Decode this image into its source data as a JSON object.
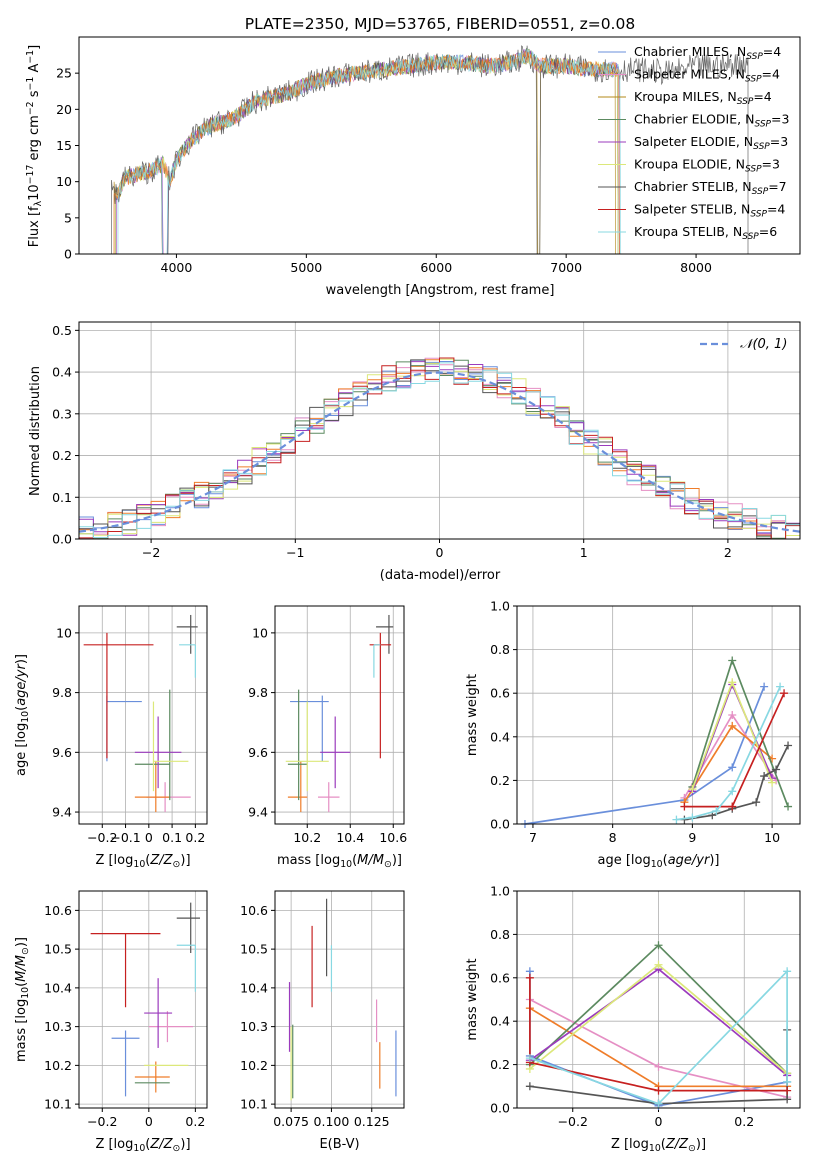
{
  "figure_title": "PLATE=2350, MJD=53765, FIBERID=0551, z=0.08",
  "colors": {
    "Chabrier MILES": "#6a8fdb",
    "Salpeter MILES": "#e58fc4",
    "Kroupa MILES": "#b38a1a",
    "Chabrier ELODIE": "#5c8a60",
    "Salpeter ELODIE": "#9b3bbd",
    "Kroupa ELODIE": "#dce87a",
    "Chabrier STELIB": "#555555",
    "Salpeter STELIB": "#c62020",
    "Kroupa STELIB": "#88d8e2",
    "extra_orange": "#ef7d2a",
    "gaussian": "#6a8fdb"
  },
  "chart_data": [
    {
      "id": "spectrum",
      "type": "line",
      "title": "PLATE=2350, MJD=53765, FIBERID=0551, z=0.08",
      "xlabel": "wavelength [Angstrom, rest frame]",
      "ylabel": "Flux [f_λ 10^-17 erg cm^-2 s^-1 A^-1]",
      "xlim": [
        3250,
        8800
      ],
      "ylim": [
        0,
        30
      ],
      "xticks": [
        4000,
        5000,
        6000,
        7000,
        8000
      ],
      "yticks": [
        0,
        5,
        10,
        15,
        20,
        25
      ],
      "legend_position": "right",
      "legend": [
        "Chabrier MILES, N_SSP=4",
        "Salpeter MILES, N_SSP=4",
        "Kroupa MILES, N_SSP=4",
        "Chabrier ELODIE, N_SSP=3",
        "Salpeter ELODIE, N_SSP=3",
        "Kroupa ELODIE, N_SSP=3",
        "Chabrier STELIB, N_SSP=7",
        "Salpeter STELIB, N_SSP=4",
        "Kroupa STELIB, N_SSP=6"
      ],
      "legend_names": [
        "Chabrier MILES",
        "Salpeter MILES",
        "Kroupa MILES",
        "Chabrier ELODIE",
        "Salpeter ELODIE",
        "Kroupa ELODIE",
        "Chabrier STELIB",
        "Salpeter STELIB",
        "Kroupa STELIB"
      ],
      "legend_counts": [
        "4",
        "4",
        "4",
        "3",
        "3",
        "3",
        "7",
        "4",
        "6"
      ],
      "series": [
        {
          "name": "Data",
          "color": "#555555",
          "x": [
            3500,
            3550,
            3600,
            3700,
            3800,
            3900,
            3950,
            4000,
            4100,
            4200,
            4300,
            4400,
            4500,
            4600,
            4700,
            4800,
            4900,
            5000,
            5200,
            5400,
            5600,
            5800,
            6000,
            6200,
            6400,
            6600,
            6700,
            6800,
            7000,
            7200,
            7400,
            7600,
            7800,
            8000,
            8200,
            8400
          ],
          "y": [
            9.5,
            8.0,
            10.5,
            11.0,
            11.5,
            12.5,
            10.0,
            13.0,
            15.5,
            17.0,
            18.0,
            18.5,
            19.5,
            21.0,
            21.5,
            22.0,
            22.5,
            23.5,
            24.5,
            25.0,
            25.5,
            26.0,
            26.5,
            26.5,
            26.0,
            26.5,
            27.5,
            26.0,
            26.0,
            25.5,
            25.5,
            25.5,
            25.0,
            26.0,
            26.0,
            26.5
          ]
        },
        {
          "name": "Model",
          "color": "#88d8e2",
          "x": [
            3550,
            3700,
            3900,
            4100,
            4300,
            4500,
            4700,
            4900,
            5100,
            5300,
            5500,
            5800,
            6100,
            6400,
            6700,
            7000,
            7300,
            7400
          ],
          "y": [
            9.0,
            10.5,
            12.0,
            15.0,
            17.5,
            19.5,
            21.5,
            22.5,
            23.5,
            24.5,
            25.0,
            25.5,
            26.0,
            26.0,
            26.0,
            25.5,
            25.5,
            25.0
          ]
        }
      ]
    },
    {
      "id": "residuals",
      "type": "histogram",
      "xlabel": "(data-model)/error",
      "ylabel": "Normed distribution",
      "xlim": [
        -2.5,
        2.5
      ],
      "ylim": [
        0,
        0.52
      ],
      "xticks": [
        -2,
        -1,
        0,
        1,
        2
      ],
      "yticks": [
        0.0,
        0.1,
        0.2,
        0.3,
        0.4,
        0.5
      ],
      "grid": true,
      "legend_position": "top-right",
      "legend": [
        "N(0,1)"
      ],
      "bin_width": 0.1,
      "bin_start": -2.5,
      "gaussian": {
        "mu": 0,
        "sigma": 1
      }
    },
    {
      "id": "age_vs_Z",
      "type": "errorbar",
      "xlabel": "Z [log10(Z/Z_sun)]",
      "ylabel": "age [log10(age/yr)]",
      "xlim": [
        -0.3,
        0.25
      ],
      "ylim": [
        9.36,
        10.09
      ],
      "xticks": [
        -0.2,
        -0.1,
        0.0,
        0.1,
        0.2
      ],
      "yticks": [
        9.4,
        9.6,
        9.8,
        10.0
      ],
      "grid": true,
      "points": [
        {
          "s": "Chabrier MILES",
          "x": -0.18,
          "xerr": [
            0.0,
            0.15
          ],
          "y": 9.77,
          "yerr": [
            0.2,
            0.02
          ]
        },
        {
          "s": "Salpeter MILES",
          "x": 0.07,
          "xerr": [
            0.08,
            0.11
          ],
          "y": 9.45,
          "yerr": [
            0.05,
            0.05
          ]
        },
        {
          "s": "extra_orange",
          "x": 0.03,
          "xerr": [
            0.09,
            0.06
          ],
          "y": 9.45,
          "yerr": [
            0.05,
            0.12
          ]
        },
        {
          "s": "Chabrier ELODIE",
          "x": 0.09,
          "xerr": [
            0.15,
            0.0
          ],
          "y": 9.56,
          "yerr": [
            0.12,
            0.25
          ]
        },
        {
          "s": "Salpeter ELODIE",
          "x": 0.04,
          "xerr": [
            0.1,
            0.1
          ],
          "y": 9.6,
          "yerr": [
            0.12,
            0.12
          ]
        },
        {
          "s": "Kroupa ELODIE",
          "x": 0.02,
          "xerr": [
            0.0,
            0.15
          ],
          "y": 9.57,
          "yerr": [
            0.1,
            0.2
          ]
        },
        {
          "s": "Chabrier STELIB",
          "x": 0.18,
          "xerr": [
            0.06,
            0.03
          ],
          "y": 10.02,
          "yerr": [
            0.09,
            0.04
          ]
        },
        {
          "s": "Salpeter STELIB",
          "x": -0.18,
          "xerr": [
            0.1,
            0.2
          ],
          "y": 9.96,
          "yerr": [
            0.38,
            0.04
          ]
        },
        {
          "s": "Kroupa STELIB",
          "x": 0.2,
          "xerr": [
            0.07,
            0.0
          ],
          "y": 9.96,
          "yerr": [
            0.11,
            0.0
          ]
        }
      ]
    },
    {
      "id": "age_vs_mass",
      "type": "errorbar",
      "xlabel": "mass [log10(M/M_sun)]",
      "ylabel": "",
      "xlim": [
        10.05,
        10.65
      ],
      "ylim": [
        9.36,
        10.09
      ],
      "xticks": [
        10.2,
        10.4,
        10.6
      ],
      "yticks": [
        9.4,
        9.6,
        9.8,
        10.0
      ],
      "grid": true,
      "points": [
        {
          "s": "Chabrier MILES",
          "x": 10.27,
          "xerr": [
            0.15,
            0.03
          ],
          "y": 9.77,
          "yerr": [
            0.2,
            0.02
          ]
        },
        {
          "s": "Salpeter MILES",
          "x": 10.3,
          "xerr": [
            0.05,
            0.05
          ],
          "y": 9.45,
          "yerr": [
            0.05,
            0.05
          ]
        },
        {
          "s": "extra_orange",
          "x": 10.17,
          "xerr": [
            0.06,
            0.03
          ],
          "y": 9.45,
          "yerr": [
            0.05,
            0.12
          ]
        },
        {
          "s": "Chabrier ELODIE",
          "x": 10.16,
          "xerr": [
            0.05,
            0.04
          ],
          "y": 9.56,
          "yerr": [
            0.12,
            0.25
          ]
        },
        {
          "s": "Salpeter ELODIE",
          "x": 10.33,
          "xerr": [
            0.07,
            0.07
          ],
          "y": 9.6,
          "yerr": [
            0.12,
            0.12
          ]
        },
        {
          "s": "Kroupa ELODIE",
          "x": 10.2,
          "xerr": [
            0.1,
            0.1
          ],
          "y": 9.57,
          "yerr": [
            0.1,
            0.2
          ]
        },
        {
          "s": "Chabrier STELIB",
          "x": 10.58,
          "xerr": [
            0.06,
            0.02
          ],
          "y": 10.02,
          "yerr": [
            0.09,
            0.04
          ]
        },
        {
          "s": "Salpeter STELIB",
          "x": 10.54,
          "xerr": [
            0.05,
            0.05
          ],
          "y": 9.96,
          "yerr": [
            0.38,
            0.04
          ]
        },
        {
          "s": "Kroupa STELIB",
          "x": 10.51,
          "xerr": [
            0.0,
            0.03
          ],
          "y": 9.96,
          "yerr": [
            0.11,
            0.0
          ]
        }
      ]
    },
    {
      "id": "mw_vs_age",
      "type": "line",
      "xlabel": "age [log10(age/yr)]",
      "ylabel": "mass weight",
      "xlim": [
        6.8,
        10.35
      ],
      "ylim": [
        0,
        1
      ],
      "xticks": [
        7,
        8,
        9,
        10
      ],
      "yticks": [
        0.0,
        0.2,
        0.4,
        0.6,
        0.8,
        1.0
      ],
      "grid": true,
      "series": [
        {
          "s": "Chabrier MILES",
          "x": [
            6.9,
            8.9,
            9.5,
            9.9
          ],
          "y": [
            0.0,
            0.11,
            0.26,
            0.63
          ]
        },
        {
          "s": "Salpeter MILES",
          "x": [
            8.9,
            9.5,
            10.05
          ],
          "y": [
            0.12,
            0.5,
            0.2
          ]
        },
        {
          "s": "extra_orange",
          "x": [
            8.9,
            9.5,
            10.0
          ],
          "y": [
            0.1,
            0.45,
            0.3
          ]
        },
        {
          "s": "Chabrier ELODIE",
          "x": [
            9.0,
            9.5,
            10.2
          ],
          "y": [
            0.17,
            0.75,
            0.08
          ]
        },
        {
          "s": "Salpeter ELODIE",
          "x": [
            9.0,
            9.5,
            10.0
          ],
          "y": [
            0.15,
            0.64,
            0.21
          ]
        },
        {
          "s": "Kroupa ELODIE",
          "x": [
            9.0,
            9.5,
            10.0
          ],
          "y": [
            0.16,
            0.65,
            0.19
          ]
        },
        {
          "s": "Chabrier STELIB",
          "x": [
            8.9,
            9.25,
            9.5,
            9.8,
            9.9,
            10.05,
            10.2
          ],
          "y": [
            0.02,
            0.04,
            0.07,
            0.1,
            0.22,
            0.25,
            0.36
          ]
        },
        {
          "s": "Salpeter STELIB",
          "x": [
            8.9,
            9.5,
            10.15
          ],
          "y": [
            0.08,
            0.08,
            0.6
          ]
        },
        {
          "s": "Kroupa STELIB",
          "x": [
            8.8,
            9.0,
            9.3,
            9.5,
            10.1
          ],
          "y": [
            0.02,
            0.03,
            0.06,
            0.15,
            0.63
          ]
        }
      ]
    },
    {
      "id": "mass_vs_Z",
      "type": "errorbar",
      "xlabel": "Z [log10(Z/Z_sun)]",
      "ylabel": "mass [log10(M/M_sun)]",
      "xlim": [
        -0.3,
        0.25
      ],
      "ylim": [
        10.09,
        10.65
      ],
      "xticks": [
        -0.2,
        0.0,
        0.2
      ],
      "yticks": [
        10.1,
        10.2,
        10.3,
        10.4,
        10.5,
        10.6
      ],
      "grid": true,
      "points": [
        {
          "s": "Chabrier MILES",
          "x": -0.1,
          "xerr": [
            0.06,
            0.06
          ],
          "y": 10.27,
          "yerr": [
            0.15,
            0.02
          ]
        },
        {
          "s": "Salpeter MILES",
          "x": 0.08,
          "xerr": [
            0.08,
            0.11
          ],
          "y": 10.3,
          "yerr": [
            0.04,
            0.04
          ]
        },
        {
          "s": "extra_orange",
          "x": 0.03,
          "xerr": [
            0.09,
            0.06
          ],
          "y": 10.17,
          "yerr": [
            0.04,
            0.04
          ]
        },
        {
          "s": "Chabrier ELODIE",
          "x": 0.09,
          "xerr": [
            0.15,
            0.0
          ],
          "y": 10.155,
          "yerr": [
            0.0,
            0.0
          ]
        },
        {
          "s": "Salpeter ELODIE",
          "x": 0.04,
          "xerr": [
            0.06,
            0.06
          ],
          "y": 10.335,
          "yerr": [
            0.09,
            0.09
          ]
        },
        {
          "s": "Kroupa ELODIE",
          "x": 0.1,
          "xerr": [
            0.12,
            0.07
          ],
          "y": 10.2,
          "yerr": [
            0.0,
            0.0
          ]
        },
        {
          "s": "Chabrier STELIB",
          "x": 0.18,
          "xerr": [
            0.06,
            0.04
          ],
          "y": 10.58,
          "yerr": [
            0.09,
            0.04
          ]
        },
        {
          "s": "Salpeter STELIB",
          "x": -0.1,
          "xerr": [
            0.15,
            0.15
          ],
          "y": 10.54,
          "yerr": [
            0.19,
            0.0
          ]
        },
        {
          "s": "Kroupa STELIB",
          "x": 0.2,
          "xerr": [
            0.08,
            0.0
          ],
          "y": 10.51,
          "yerr": [
            0.12,
            0.0
          ]
        }
      ]
    },
    {
      "id": "mass_vs_ebv",
      "type": "errorbar",
      "xlabel": "E(B-V)",
      "ylabel": "",
      "xlim": [
        0.065,
        0.145
      ],
      "ylim": [
        10.09,
        10.65
      ],
      "xticks": [
        0.075,
        0.1,
        0.125
      ],
      "xtick_labels": [
        "0.075",
        "0.100",
        "0.125"
      ],
      "yticks": [
        10.1,
        10.2,
        10.3,
        10.4,
        10.5,
        10.6
      ],
      "grid": true,
      "points": [
        {
          "s": "Chabrier MILES",
          "x": 0.14,
          "y": 10.2,
          "yerr": [
            0.08,
            0.09
          ]
        },
        {
          "s": "Salpeter MILES",
          "x": 0.128,
          "y": 10.3,
          "yerr": [
            0.04,
            0.07
          ]
        },
        {
          "s": "extra_orange",
          "x": 0.13,
          "y": 10.2,
          "yerr": [
            0.06,
            0.06
          ]
        },
        {
          "s": "Chabrier ELODIE",
          "x": 0.076,
          "y": 10.155,
          "yerr": [
            0.04,
            0.15
          ]
        },
        {
          "s": "Salpeter ELODIE",
          "x": 0.074,
          "y": 10.335,
          "yerr": [
            0.1,
            0.08
          ]
        },
        {
          "s": "Kroupa ELODIE",
          "x": 0.075,
          "y": 10.2,
          "yerr": [
            0.09,
            0.1
          ]
        },
        {
          "s": "Chabrier STELIB",
          "x": 0.097,
          "y": 10.53,
          "yerr": [
            0.1,
            0.1
          ]
        },
        {
          "s": "Salpeter STELIB",
          "x": 0.088,
          "y": 10.45,
          "yerr": [
            0.1,
            0.11
          ]
        },
        {
          "s": "Kroupa STELIB",
          "x": 0.1,
          "y": 10.45,
          "yerr": [
            0.06,
            0.06
          ]
        }
      ]
    },
    {
      "id": "mw_vs_Z",
      "type": "line",
      "xlabel": "Z [log10(Z/Z_sun)]",
      "ylabel": "mass weight",
      "xlim": [
        -0.33,
        0.33
      ],
      "ylim": [
        0,
        1
      ],
      "xticks": [
        -0.2,
        0.0,
        0.2
      ],
      "yticks": [
        0.0,
        0.2,
        0.4,
        0.6,
        0.8,
        1.0
      ],
      "grid": true,
      "series": [
        {
          "s": "Chabrier MILES",
          "x": [
            -0.3,
            -0.3,
            0.0,
            0.3
          ],
          "y": [
            0.63,
            0.24,
            0.01,
            0.12
          ]
        },
        {
          "s": "Salpeter MILES",
          "x": [
            -0.3,
            0.0,
            0.3
          ],
          "y": [
            0.5,
            0.19,
            0.05
          ]
        },
        {
          "s": "extra_orange",
          "x": [
            -0.3,
            0.0,
            0.3
          ],
          "y": [
            0.46,
            0.1,
            0.1
          ]
        },
        {
          "s": "Chabrier ELODIE",
          "x": [
            -0.3,
            0.0,
            0.3
          ],
          "y": [
            0.2,
            0.75,
            0.16
          ]
        },
        {
          "s": "Salpeter ELODIE",
          "x": [
            -0.3,
            0.0,
            0.3
          ],
          "y": [
            0.22,
            0.64,
            0.15
          ]
        },
        {
          "s": "Kroupa ELODIE",
          "x": [
            -0.3,
            0.0,
            0.3
          ],
          "y": [
            0.18,
            0.66,
            0.16
          ]
        },
        {
          "s": "Chabrier STELIB",
          "x": [
            -0.3,
            0.0,
            0.3,
            0.3
          ],
          "y": [
            0.1,
            0.02,
            0.04,
            0.36
          ]
        },
        {
          "s": "Salpeter STELIB",
          "x": [
            -0.3,
            -0.3,
            0.0,
            0.3
          ],
          "y": [
            0.6,
            0.21,
            0.08,
            0.08
          ]
        },
        {
          "s": "Kroupa STELIB",
          "x": [
            -0.3,
            0.0,
            0.3,
            0.3
          ],
          "y": [
            0.23,
            0.02,
            0.63,
            0.12
          ]
        }
      ]
    }
  ]
}
